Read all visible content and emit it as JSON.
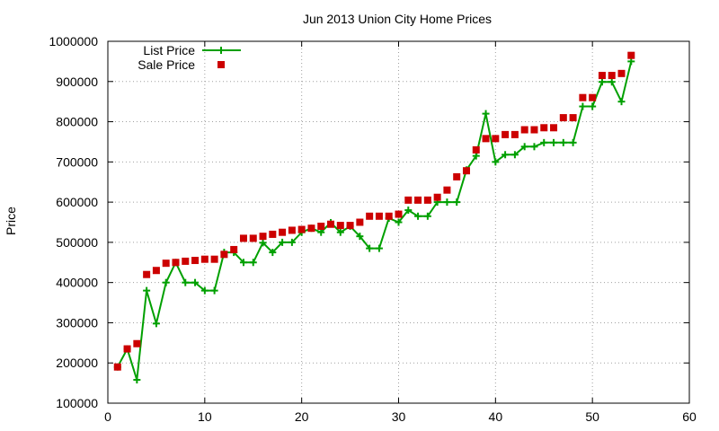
{
  "chart_data": {
    "type": "scatter",
    "title": "Jun 2013 Union City Home Prices",
    "xlabel": "",
    "ylabel": "Price",
    "xlim": [
      0,
      60
    ],
    "ylim": [
      100000,
      1000000
    ],
    "xticks": [
      "0",
      "10",
      "20",
      "30",
      "40",
      "50",
      "60"
    ],
    "yticks": [
      "100000",
      "200000",
      "300000",
      "400000",
      "500000",
      "600000",
      "700000",
      "800000",
      "900000",
      "1000000"
    ],
    "grid": true,
    "legend_position": "top-left",
    "series": [
      {
        "name": "List Price",
        "style": "line-with-plus-markers",
        "color": "#00a000",
        "x": [
          1,
          2,
          3,
          4,
          5,
          6,
          7,
          8,
          9,
          10,
          11,
          12,
          13,
          14,
          15,
          16,
          17,
          18,
          19,
          20,
          21,
          22,
          23,
          24,
          25,
          26,
          27,
          28,
          29,
          30,
          31,
          32,
          33,
          34,
          35,
          36,
          37,
          38,
          39,
          40,
          41,
          42,
          43,
          44,
          45,
          46,
          47,
          48,
          49,
          50,
          51,
          52,
          53,
          54
        ],
        "values": [
          190000,
          235000,
          158000,
          380000,
          298000,
          400000,
          450000,
          400000,
          400000,
          380000,
          380000,
          475000,
          475000,
          450000,
          450000,
          499000,
          475000,
          500000,
          500000,
          525000,
          535000,
          525000,
          549000,
          525000,
          540000,
          515000,
          485000,
          485000,
          560000,
          550000,
          580000,
          565000,
          565000,
          600000,
          600000,
          600000,
          680000,
          715000,
          820000,
          700000,
          718000,
          718000,
          738000,
          738000,
          748000,
          748000,
          748000,
          748000,
          838000,
          838000,
          899000,
          899000,
          850000,
          950000
        ]
      },
      {
        "name": "Sale Price",
        "style": "square-markers",
        "color": "#cc0000",
        "x": [
          1,
          2,
          3,
          4,
          5,
          6,
          7,
          8,
          9,
          10,
          11,
          12,
          13,
          14,
          15,
          16,
          17,
          18,
          19,
          20,
          21,
          22,
          23,
          24,
          25,
          26,
          27,
          28,
          29,
          30,
          31,
          32,
          33,
          34,
          35,
          36,
          37,
          38,
          39,
          40,
          41,
          42,
          43,
          44,
          45,
          46,
          47,
          48,
          49,
          50,
          51,
          52,
          53,
          54
        ],
        "values": [
          190000,
          235000,
          248000,
          420000,
          430000,
          448000,
          450000,
          453000,
          455000,
          458000,
          458000,
          470000,
          482000,
          510000,
          510000,
          515000,
          520000,
          525000,
          530000,
          532000,
          535000,
          540000,
          545000,
          542000,
          542000,
          550000,
          565000,
          565000,
          565000,
          570000,
          605000,
          605000,
          605000,
          612000,
          630000,
          663000,
          678000,
          730000,
          758000,
          758000,
          768000,
          768000,
          780000,
          780000,
          785000,
          785000,
          810000,
          810000,
          860000,
          860000,
          915000,
          915000,
          920000,
          965000
        ]
      }
    ]
  },
  "colors": {
    "list_line": "#00a000",
    "sale_marker": "#cc0000",
    "grid": "#a0a0a0"
  }
}
